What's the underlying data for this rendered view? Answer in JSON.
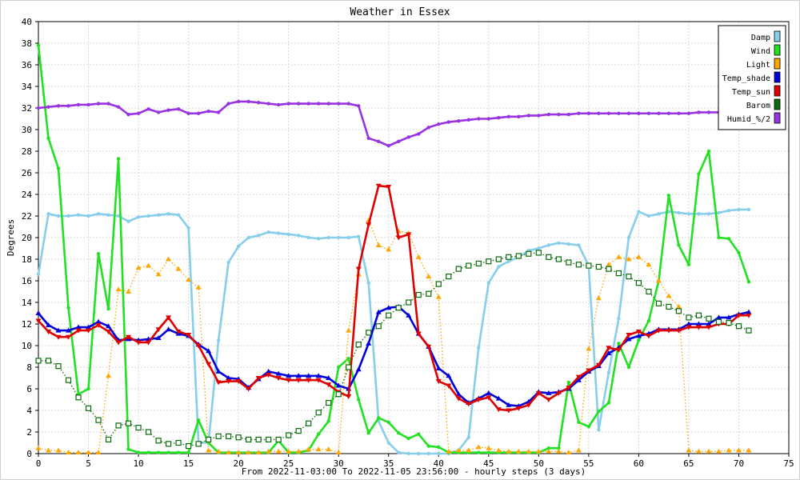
{
  "chart_data": {
    "type": "line",
    "title": "Weather in Essex",
    "xlabel": "From 2022-11-03:00 To 2022-11-05 23:56:00 - hourly steps (3 days)",
    "ylabel": "Degrees",
    "xlim": [
      0,
      75
    ],
    "ylim": [
      0,
      40
    ],
    "xticks": [
      0,
      5,
      10,
      15,
      20,
      25,
      30,
      35,
      40,
      45,
      50,
      55,
      60,
      65,
      70,
      75
    ],
    "yticks": [
      0,
      2,
      4,
      6,
      8,
      10,
      12,
      14,
      16,
      18,
      20,
      22,
      24,
      26,
      28,
      30,
      32,
      34,
      36,
      38,
      40
    ],
    "grid": true,
    "legend_position": "top-right",
    "x": [
      0,
      1,
      2,
      3,
      4,
      5,
      6,
      7,
      8,
      9,
      10,
      11,
      12,
      13,
      14,
      15,
      16,
      17,
      18,
      19,
      20,
      21,
      22,
      23,
      24,
      25,
      26,
      27,
      28,
      29,
      30,
      31,
      32,
      33,
      34,
      35,
      36,
      37,
      38,
      39,
      40,
      41,
      42,
      43,
      44,
      45,
      46,
      47,
      48,
      49,
      50,
      51,
      52,
      53,
      54,
      55,
      56,
      57,
      58,
      59,
      60,
      61,
      62,
      63,
      64,
      65,
      66,
      67,
      68,
      69,
      70,
      71
    ],
    "series": [
      {
        "name": "Damp",
        "color": "#87ceeb",
        "style": "solid",
        "marker": "dot",
        "values": [
          16.6,
          22.2,
          22.0,
          22.0,
          22.1,
          22.0,
          22.2,
          22.1,
          22.0,
          21.5,
          21.9,
          22.0,
          22.1,
          22.2,
          22.1,
          20.9,
          1.0,
          1.0,
          10.5,
          17.7,
          19.2,
          20.0,
          20.2,
          20.5,
          20.4,
          20.3,
          20.2,
          20.0,
          19.9,
          20.0,
          20.0,
          20.0,
          20.1,
          15.8,
          3.0,
          1.0,
          0.1,
          0.0,
          0.0,
          0.0,
          0.0,
          0.0,
          0.3,
          1.5,
          9.8,
          15.8,
          17.3,
          17.8,
          18.2,
          18.8,
          19.0,
          19.3,
          19.5,
          19.4,
          19.3,
          17.4,
          2.2,
          7.5,
          12.5,
          20.0,
          22.4,
          22.0,
          22.2,
          22.4,
          22.3,
          22.2,
          22.2,
          22.2,
          22.3,
          22.5,
          22.6,
          22.6
        ]
      },
      {
        "name": "Wind",
        "color": "#22e022",
        "style": "solid",
        "marker": "dot",
        "values": [
          37.8,
          29.2,
          26.4,
          13.5,
          5.5,
          6.0,
          18.5,
          13.4,
          27.3,
          0.4,
          0.1,
          0.1,
          0.1,
          0.1,
          0.1,
          0.1,
          3.1,
          1.0,
          0.1,
          0.1,
          0.1,
          0.1,
          0.1,
          0.1,
          1.2,
          0.1,
          0.1,
          0.3,
          1.8,
          3.0,
          8.0,
          8.8,
          5.0,
          1.9,
          3.3,
          2.9,
          1.9,
          1.4,
          1.8,
          0.7,
          0.6,
          0.1,
          0.1,
          0.1,
          0.1,
          0.1,
          0.1,
          0.1,
          0.1,
          0.1,
          0.1,
          0.5,
          0.5,
          6.6,
          2.9,
          2.5,
          3.9,
          4.7,
          10.2,
          8.0,
          10.5,
          12.3,
          16.0,
          23.9,
          19.3,
          17.5,
          25.9,
          28.0,
          20.0,
          19.9,
          18.6,
          15.9
        ]
      },
      {
        "name": "Light",
        "color": "#ffa500",
        "style": "dotted",
        "marker": "triangle",
        "values": [
          0.5,
          0.3,
          0.3,
          0.1,
          0.1,
          0.1,
          0.1,
          7.2,
          15.2,
          15.0,
          17.2,
          17.4,
          16.6,
          18.0,
          17.1,
          16.1,
          15.4,
          0.3,
          0.2,
          0.1,
          0.1,
          0.1,
          0.1,
          0.2,
          0.2,
          0.2,
          0.2,
          0.4,
          0.4,
          0.4,
          0.1,
          11.4,
          16.6,
          21.6,
          19.3,
          18.9,
          20.6,
          20.4,
          18.2,
          16.4,
          14.5,
          0.2,
          0.3,
          0.3,
          0.6,
          0.5,
          0.3,
          0.2,
          0.2,
          0.2,
          0.2,
          0.2,
          0.2,
          0.1,
          0.3,
          9.7,
          14.4,
          17.5,
          18.2,
          18.0,
          18.2,
          17.5,
          16.0,
          14.6,
          13.6,
          0.3,
          0.2,
          0.2,
          0.2,
          0.3,
          0.3,
          0.3
        ]
      },
      {
        "name": "Temp_shade",
        "color": "#0000dd",
        "style": "solid",
        "marker": "triangle",
        "values": [
          13.0,
          11.9,
          11.4,
          11.4,
          11.7,
          11.7,
          12.2,
          11.8,
          10.5,
          10.6,
          10.5,
          10.6,
          10.7,
          11.5,
          11.1,
          10.9,
          10.1,
          9.5,
          7.6,
          7.0,
          6.9,
          6.1,
          6.9,
          7.6,
          7.4,
          7.2,
          7.2,
          7.2,
          7.2,
          7.0,
          6.3,
          6.0,
          7.8,
          10.2,
          13.1,
          13.5,
          13.6,
          12.8,
          11.1,
          9.9,
          7.9,
          7.2,
          5.5,
          4.7,
          5.1,
          5.6,
          5.1,
          4.5,
          4.4,
          4.8,
          5.7,
          5.6,
          5.7,
          6.0,
          6.8,
          7.6,
          8.1,
          9.3,
          9.8,
          10.6,
          10.9,
          11.1,
          11.5,
          11.5,
          11.5,
          12.0,
          12.0,
          12.0,
          12.6,
          12.6,
          12.9,
          13.1
        ]
      },
      {
        "name": "Temp_sun",
        "color": "#e00000",
        "style": "solid",
        "marker": "invtriangle",
        "values": [
          12.3,
          11.3,
          10.8,
          10.8,
          11.4,
          11.4,
          11.9,
          11.3,
          10.3,
          10.8,
          10.3,
          10.3,
          11.5,
          12.6,
          11.3,
          11.0,
          10.0,
          8.3,
          6.6,
          6.7,
          6.7,
          6.0,
          7.0,
          7.3,
          7.0,
          6.8,
          6.8,
          6.8,
          6.8,
          6.4,
          5.7,
          5.3,
          17.1,
          21.2,
          24.8,
          24.7,
          20.0,
          20.3,
          11.1,
          9.9,
          6.7,
          6.3,
          5.1,
          4.6,
          5.0,
          5.2,
          4.1,
          4.0,
          4.2,
          4.5,
          5.6,
          5.0,
          5.6,
          6.1,
          7.1,
          7.7,
          8.2,
          9.8,
          9.6,
          11.0,
          11.3,
          10.9,
          11.4,
          11.4,
          11.4,
          11.7,
          11.7,
          11.7,
          12.0,
          12.0,
          12.8,
          12.8
        ]
      },
      {
        "name": "Barom",
        "color": "#0b6b0b",
        "style": "dotted",
        "marker": "square",
        "values": [
          8.6,
          8.6,
          8.1,
          6.8,
          5.2,
          4.2,
          3.1,
          1.3,
          2.6,
          2.8,
          2.4,
          2.0,
          1.2,
          0.9,
          1.0,
          0.7,
          0.9,
          1.3,
          1.6,
          1.6,
          1.5,
          1.3,
          1.3,
          1.3,
          1.3,
          1.7,
          2.1,
          2.8,
          3.8,
          4.7,
          5.5,
          8.0,
          10.1,
          11.2,
          11.8,
          12.8,
          13.5,
          14.0,
          14.7,
          14.8,
          15.7,
          16.4,
          17.1,
          17.4,
          17.6,
          17.8,
          18.0,
          18.2,
          18.3,
          18.5,
          18.6,
          18.2,
          18.0,
          17.7,
          17.5,
          17.4,
          17.3,
          17.1,
          16.7,
          16.4,
          15.8,
          15.0,
          13.9,
          13.6,
          13.2,
          12.6,
          12.8,
          12.5,
          12.2,
          12.1,
          11.8,
          11.4
        ]
      },
      {
        "name": "Humid_%/2",
        "color": "#9932e0",
        "style": "solid",
        "marker": "dot",
        "values": [
          32.0,
          32.1,
          32.2,
          32.2,
          32.3,
          32.3,
          32.4,
          32.4,
          32.1,
          31.4,
          31.5,
          31.9,
          31.6,
          31.8,
          31.9,
          31.5,
          31.5,
          31.7,
          31.6,
          32.4,
          32.6,
          32.6,
          32.5,
          32.4,
          32.3,
          32.4,
          32.4,
          32.4,
          32.4,
          32.4,
          32.4,
          32.4,
          32.2,
          29.2,
          28.9,
          28.5,
          28.9,
          29.3,
          29.6,
          30.2,
          30.5,
          30.7,
          30.8,
          30.9,
          31.0,
          31.0,
          31.1,
          31.2,
          31.2,
          31.3,
          31.3,
          31.4,
          31.4,
          31.4,
          31.5,
          31.5,
          31.5,
          31.5,
          31.5,
          31.5,
          31.5,
          31.5,
          31.5,
          31.5,
          31.5,
          31.5,
          31.6,
          31.6,
          31.6,
          31.6,
          31.6,
          31.6
        ]
      }
    ]
  }
}
